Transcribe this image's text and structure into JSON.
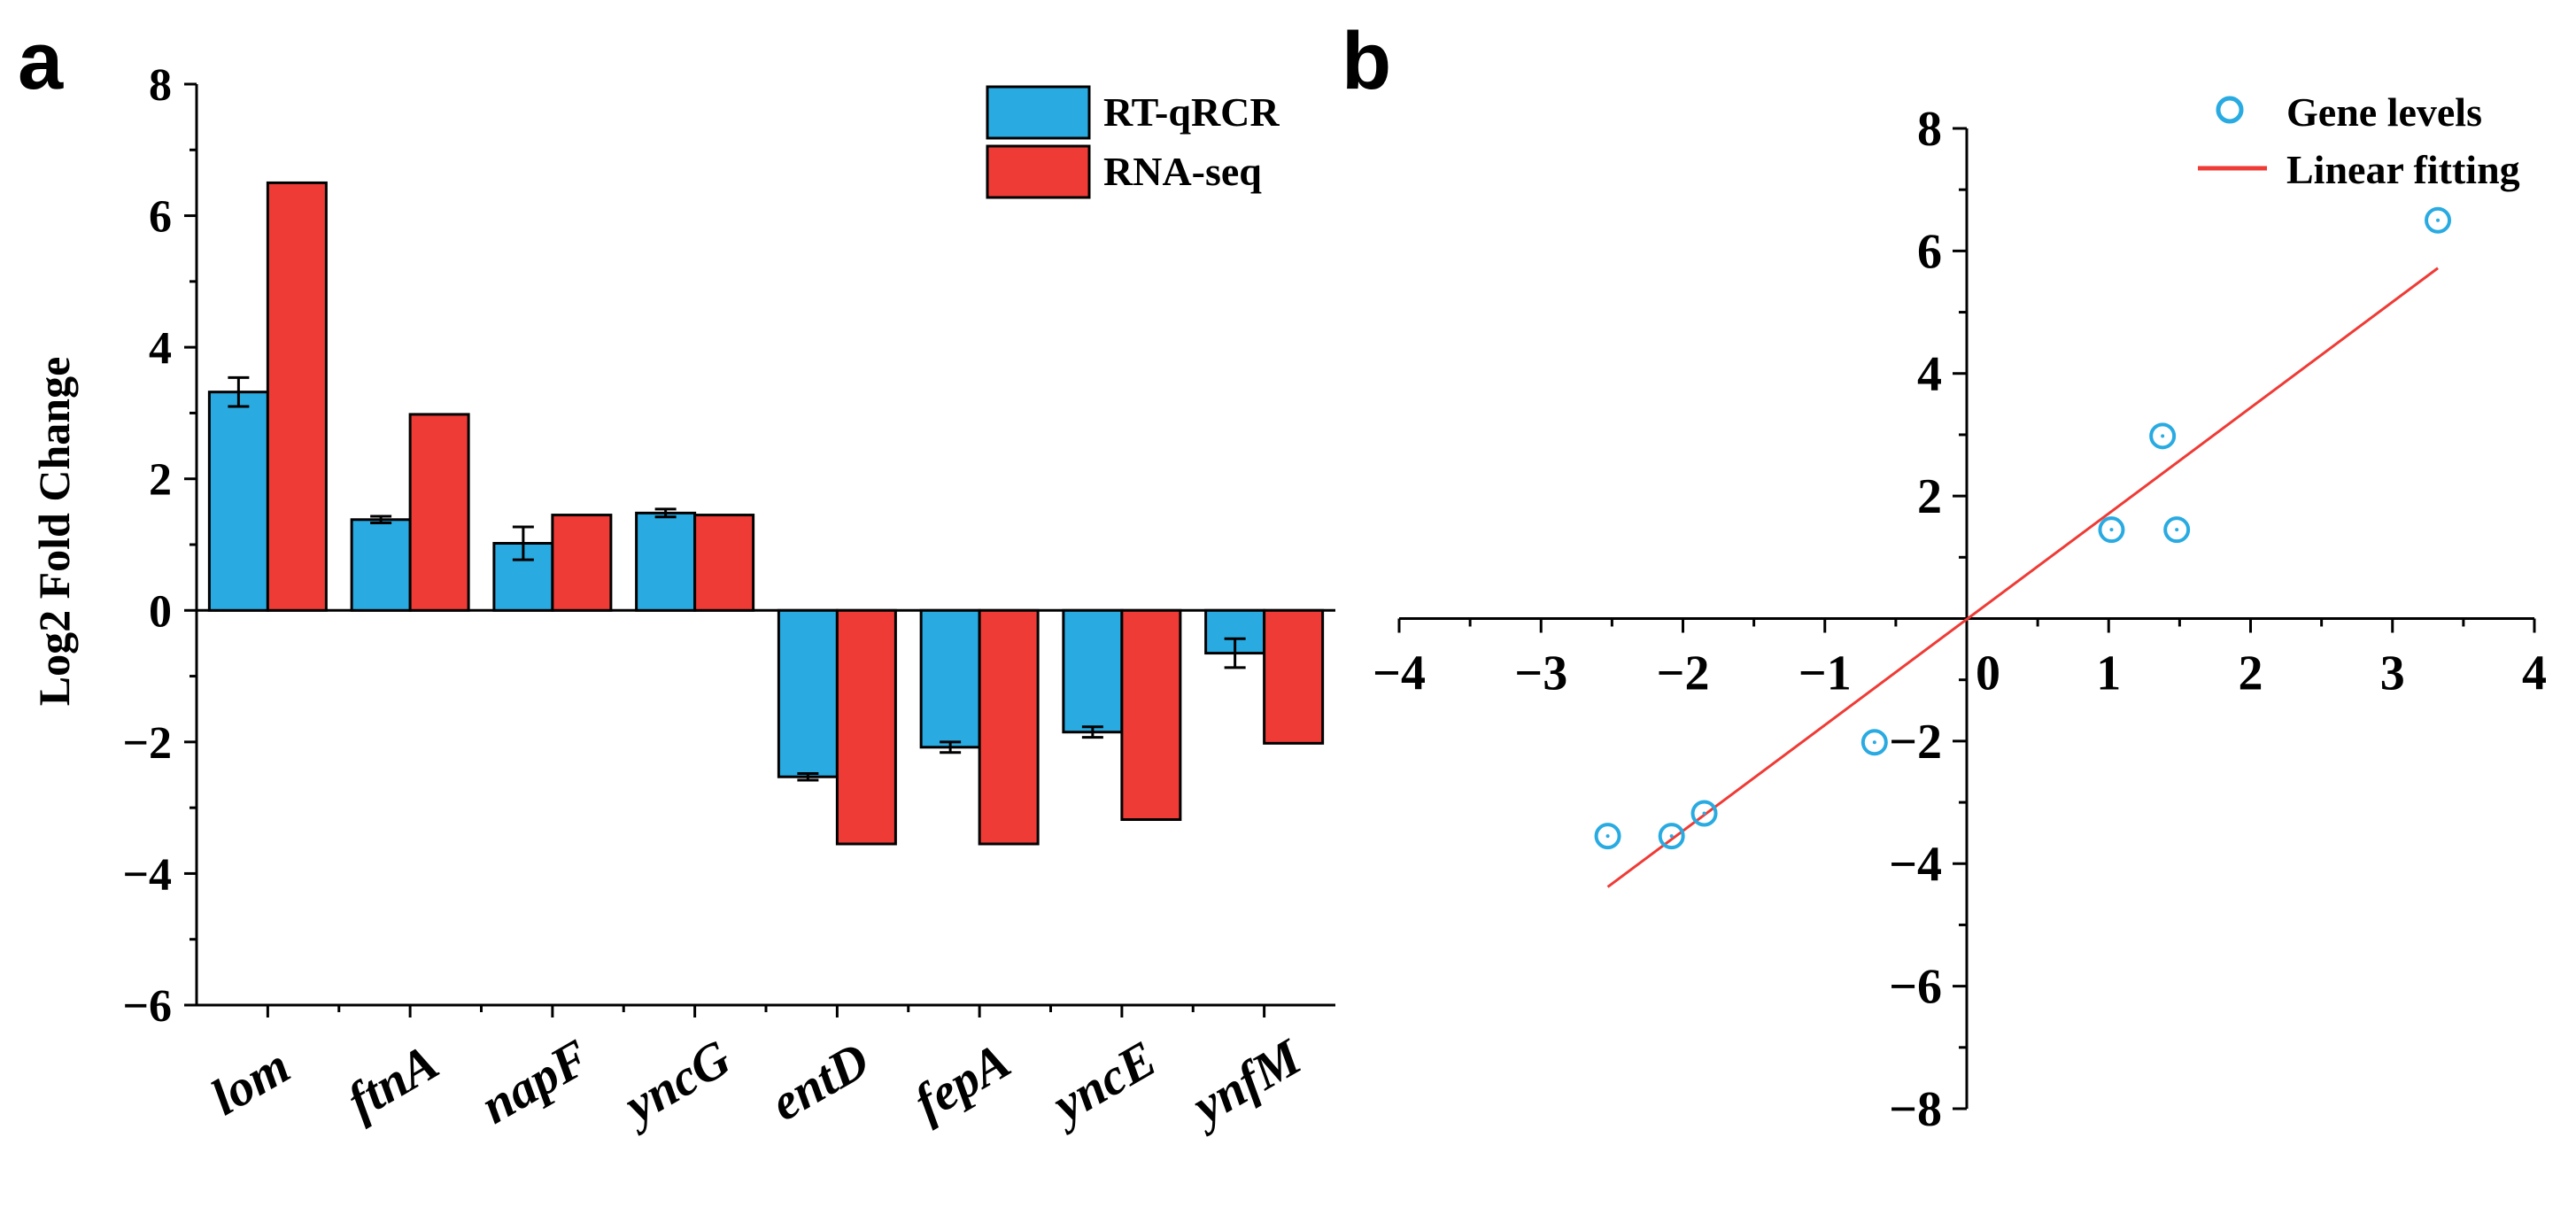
{
  "chart_data": [
    {
      "panel_label": "a",
      "type": "bar",
      "title": "",
      "xlabel": "",
      "ylabel": "Log2 Fold Change",
      "ylim": [
        -6,
        8
      ],
      "yticks": [
        "8",
        "6",
        "4",
        "2",
        "0",
        "−2",
        "−4",
        "−6"
      ],
      "ytick_values": [
        8,
        6,
        4,
        2,
        0,
        -2,
        -4,
        -6
      ],
      "categories": [
        "lom",
        "ftnA",
        "napF",
        "yncG",
        "entD",
        "fepA",
        "yncE",
        "ynfM"
      ],
      "series": [
        {
          "name": "RT-qRCR",
          "color": "#29abe2",
          "values": [
            3.32,
            1.38,
            1.02,
            1.48,
            -2.53,
            -2.08,
            -1.85,
            -0.65
          ],
          "errors": [
            0.22,
            0.05,
            0.25,
            0.06,
            0.05,
            0.08,
            0.08,
            0.22
          ]
        },
        {
          "name": "RNA-seq",
          "color": "#ef3b36",
          "values": [
            6.5,
            2.98,
            1.45,
            1.45,
            -3.55,
            -3.55,
            -3.18,
            -2.02
          ],
          "errors": []
        }
      ],
      "legend_position": "top-right"
    },
    {
      "panel_label": "b",
      "type": "scatter",
      "title": "",
      "xlabel": "",
      "ylabel": "",
      "xlim": [
        -4,
        4
      ],
      "ylim": [
        -8,
        8
      ],
      "xticks": [
        "−4",
        "−3",
        "−2",
        "−1",
        "0",
        "1",
        "2",
        "3",
        "4"
      ],
      "xtick_values": [
        -4,
        -3,
        -2,
        -1,
        0,
        1,
        2,
        3,
        4
      ],
      "yticks": [
        "8",
        "6",
        "4",
        "2",
        "−2",
        "−4",
        "−6",
        "−8"
      ],
      "ytick_values": [
        8,
        6,
        4,
        2,
        -2,
        -4,
        -6,
        -8
      ],
      "series": [
        {
          "name": "Gene levels",
          "color": "#29abe2",
          "points": [
            {
              "x": 3.32,
              "y": 6.5
            },
            {
              "x": 1.38,
              "y": 2.98
            },
            {
              "x": 1.02,
              "y": 1.45
            },
            {
              "x": 1.48,
              "y": 1.45
            },
            {
              "x": -2.53,
              "y": -3.55
            },
            {
              "x": -2.08,
              "y": -3.55
            },
            {
              "x": -1.85,
              "y": -3.18
            },
            {
              "x": -0.65,
              "y": -2.02
            }
          ]
        },
        {
          "name": "Linear fitting",
          "color": "#ef3b36",
          "type": "line",
          "points": [
            {
              "x": -2.53,
              "y": -4.38
            },
            {
              "x": 3.32,
              "y": 5.72
            }
          ]
        }
      ],
      "legend_position": "top-right"
    }
  ]
}
